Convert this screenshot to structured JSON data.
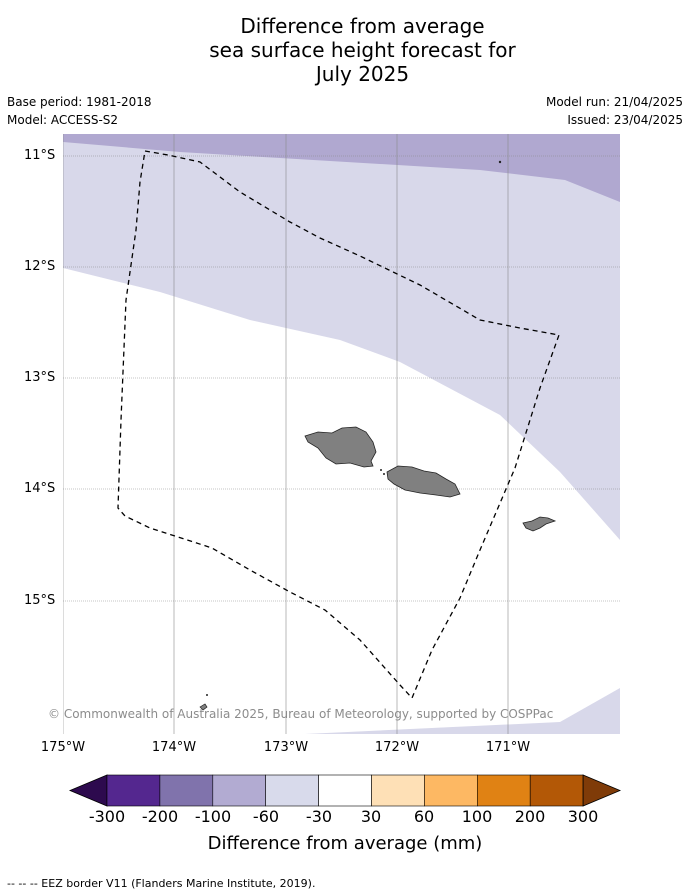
{
  "title": {
    "line1": "Difference from average",
    "line2": "sea surface height forecast for",
    "line3": "July 2025"
  },
  "meta": {
    "base_period": "Base period: 1981-2018",
    "model": "Model: ACCESS-S2",
    "model_run": "Model run: 21/04/2025",
    "issued": "Issued: 23/04/2025"
  },
  "map": {
    "lat_labels": [
      "11°S",
      "12°S",
      "13°S",
      "14°S",
      "15°S"
    ],
    "lon_labels": [
      "175°W",
      "174°W",
      "173°W",
      "172°W",
      "171°W"
    ],
    "copyright": "© Commonwealth of Australia 2025, Bureau of Meteorology, supported by COSPPac",
    "colors": {
      "band_m100_m60": "#b0a8d0",
      "band_m60_m30": "#d8d8ea",
      "land": "#808080",
      "eez": "#000000"
    }
  },
  "colorbar": {
    "ticks": [
      "-300",
      "-200",
      "-100",
      "-60",
      "-30",
      "30",
      "60",
      "100",
      "200",
      "300"
    ],
    "colors": [
      "#2d0a4e",
      "#54278f",
      "#8073ac",
      "#b2abd2",
      "#d8daeb",
      "#ffffff",
      "#fee0b6",
      "#fdb863",
      "#e08214",
      "#b35806",
      "#7f3b08"
    ],
    "label": "Difference from average (mm)"
  },
  "footnote": "--  --  -- EEZ border V11 (Flanders Marine Institute, 2019)."
}
